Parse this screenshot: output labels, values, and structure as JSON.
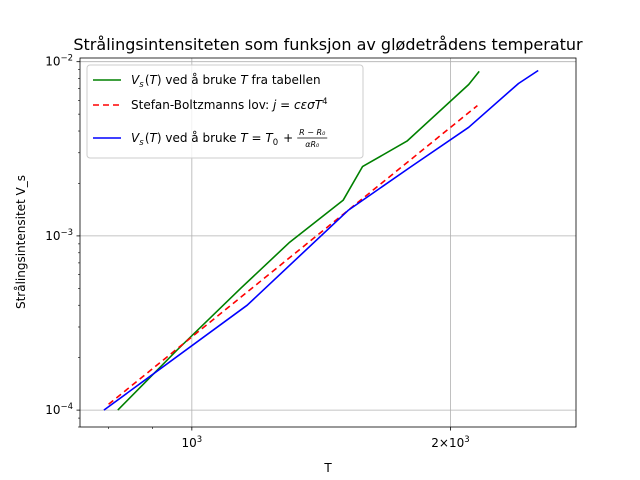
{
  "chart_data": {
    "type": "line",
    "title": "Strålingsintensiteten som funksjon av glødetrådens temperatur",
    "xlabel": "T",
    "ylabel": "Strålingsintensitet V_s",
    "xscale": "log",
    "yscale": "log",
    "xlim": [
      741,
      2800
    ],
    "ylim": [
      8e-05,
      0.0105
    ],
    "grid": true,
    "legend_position": "upper-left",
    "x_major_ticks": [
      {
        "value": 1000,
        "base": "10",
        "exp": "3"
      },
      {
        "value": 2000,
        "base": "2×10",
        "exp": "3"
      }
    ],
    "x_minor_ticks": [
      800,
      900,
      3000
    ],
    "y_major_ticks": [
      {
        "value": 0.0001,
        "base": "10",
        "exp": "−4"
      },
      {
        "value": 0.001,
        "base": "10",
        "exp": "−3"
      },
      {
        "value": 0.01,
        "base": "10",
        "exp": "−2"
      }
    ],
    "series": [
      {
        "name_parts": [
          {
            "t": "V",
            "i": true
          },
          {
            "t": "s",
            "i": true,
            "sub": true
          },
          {
            "t": "("
          },
          {
            "t": "T",
            "i": true
          },
          {
            "t": ") ved å bruke "
          },
          {
            "t": "T",
            "i": true
          },
          {
            "t": " fra tabellen"
          }
        ],
        "color": "#008000",
        "dash": "",
        "points": [
          [
            820,
            0.0001
          ],
          [
            960,
            0.00022
          ],
          [
            1140,
            0.0005
          ],
          [
            1300,
            0.00092
          ],
          [
            1500,
            0.0016
          ],
          [
            1580,
            0.0025
          ],
          [
            1780,
            0.0035
          ],
          [
            2100,
            0.0074
          ],
          [
            2160,
            0.0088
          ]
        ]
      },
      {
        "name_parts": [
          {
            "t": "Stefan-Boltzmanns lov: "
          },
          {
            "t": "j",
            "i": true
          },
          {
            "t": " = "
          },
          {
            "t": "cεσT",
            "i": true
          },
          {
            "t": "4",
            "sup": true
          }
        ],
        "color": "#ff0000",
        "dash": "6 4",
        "points": [
          [
            800,
            0.000108
          ],
          [
            2150,
            0.0056
          ]
        ]
      },
      {
        "name_parts": [
          {
            "t": "V",
            "i": true
          },
          {
            "t": "s",
            "i": true,
            "sub": true
          },
          {
            "t": "("
          },
          {
            "t": "T",
            "i": true
          },
          {
            "t": ") ved å bruke "
          },
          {
            "t": "T",
            "i": true
          },
          {
            "t": " = "
          },
          {
            "t": "T",
            "i": true
          },
          {
            "t": "0",
            "sub": true
          },
          {
            "t": " + "
          },
          {
            "frac": true,
            "num": "R − R₀",
            "den": "αR₀"
          }
        ],
        "color": "#0000ff",
        "dash": "",
        "points": [
          [
            790,
            0.0001
          ],
          [
            1160,
            0.0004
          ],
          [
            1520,
            0.0014
          ],
          [
            1800,
            0.0025
          ],
          [
            2100,
            0.0042
          ],
          [
            2400,
            0.0075
          ],
          [
            2530,
            0.0089
          ]
        ]
      }
    ]
  }
}
